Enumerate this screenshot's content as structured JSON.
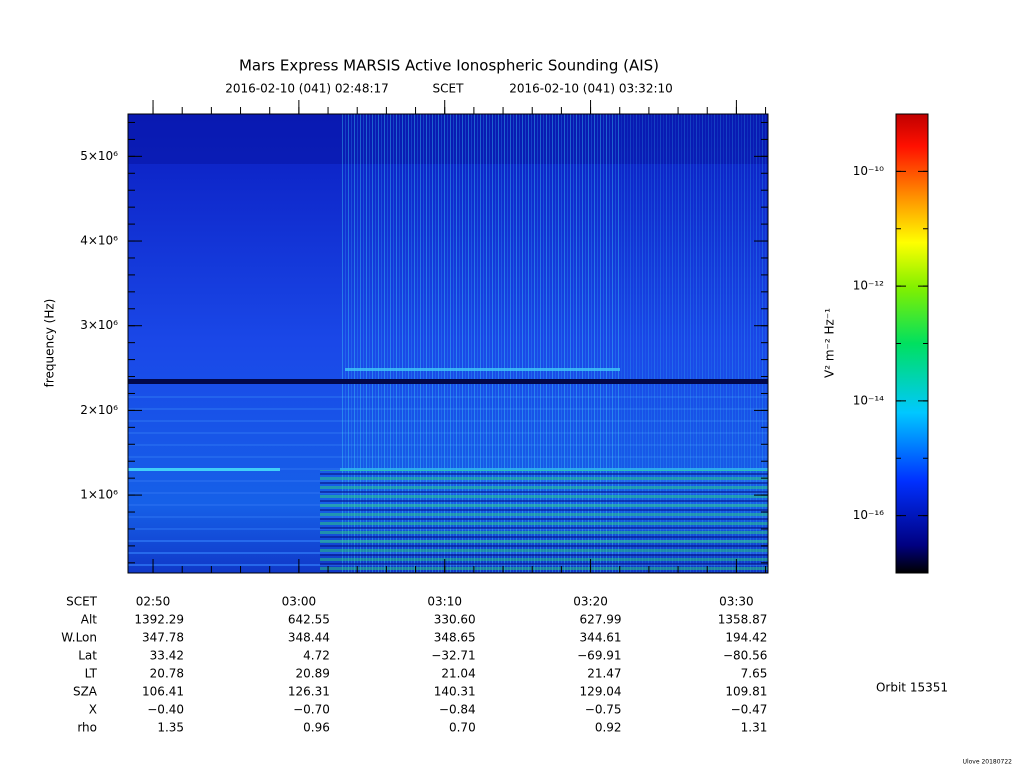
{
  "chart_data": {
    "type": "spectrogram",
    "title": "Mars Express MARSIS Active Ionospheric Sounding (AIS)",
    "start_time": "2016-02-10 (041) 02:48:17",
    "time_label": "SCET",
    "end_time": "2016-02-10 (041) 03:32:10",
    "y_label": "frequency (Hz)",
    "xlim": [
      "02:48:17",
      "03:32:10"
    ],
    "xticks": [
      "02:50",
      "03:00",
      "03:10",
      "03:20",
      "03:30"
    ],
    "ylim": [
      80000,
      5500000
    ],
    "yticks": [
      {
        "value": 1000000,
        "label": "1×10⁶"
      },
      {
        "value": 2000000,
        "label": "2×10⁶"
      },
      {
        "value": 3000000,
        "label": "3×10⁶"
      },
      {
        "value": 4000000,
        "label": "4×10⁶"
      },
      {
        "value": 5000000,
        "label": "5×10⁶"
      }
    ],
    "colorbar": {
      "label": "V² m⁻² Hz⁻¹",
      "log": true,
      "clim": [
        1e-17,
        1e-09
      ],
      "ticks": [
        {
          "value": 1e-10,
          "label": "10⁻¹⁰"
        },
        {
          "value": 1e-12,
          "label": "10⁻¹²"
        },
        {
          "value": 1e-14,
          "label": "10⁻¹⁴"
        },
        {
          "value": 1e-16,
          "label": "10⁻¹⁶"
        }
      ]
    },
    "ephemeris": {
      "time_row_label": "SCET",
      "rows": [
        {
          "label": "Alt",
          "values": [
            "1392.29",
            "642.55",
            "330.60",
            "627.99",
            "1358.87"
          ]
        },
        {
          "label": "W.Lon",
          "values": [
            "347.78",
            "348.44",
            "348.65",
            "344.61",
            "194.42"
          ]
        },
        {
          "label": "Lat",
          "values": [
            "33.42",
            "4.72",
            "−32.71",
            "−69.91",
            "−80.56"
          ]
        },
        {
          "label": "LT",
          "values": [
            "20.78",
            "20.89",
            "21.04",
            "21.47",
            "7.65"
          ]
        },
        {
          "label": "SZA",
          "values": [
            "106.41",
            "126.31",
            "140.31",
            "129.04",
            "109.81"
          ]
        },
        {
          "label": "X",
          "values": [
            "−0.40",
            "−0.70",
            "−0.84",
            "−0.75",
            "−0.47"
          ]
        },
        {
          "label": "rho",
          "values": [
            "1.35",
            "0.96",
            "0.70",
            "0.92",
            "1.31"
          ]
        }
      ]
    },
    "orbit": "Orbit 15351",
    "footer": "Ulove 20180722"
  }
}
